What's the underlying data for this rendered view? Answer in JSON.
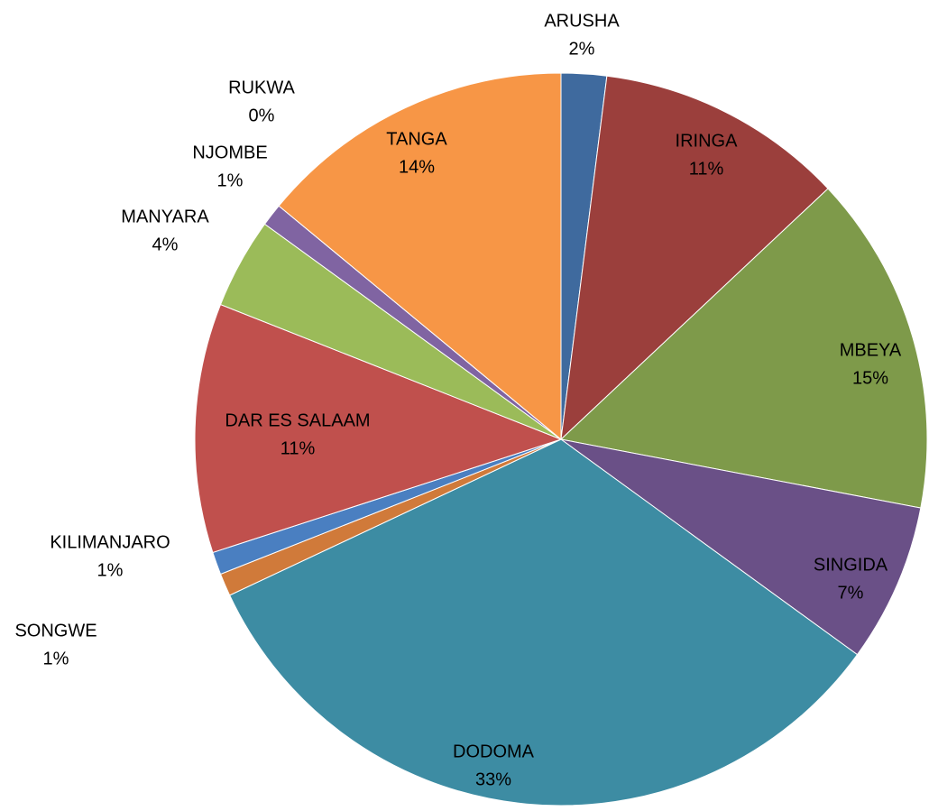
{
  "chart_data": {
    "type": "pie",
    "categories": [
      "ARUSHA",
      "IRINGA",
      "MBEYA",
      "SINGIDA",
      "DODOMA",
      "SONGWE",
      "KILIMANJARO",
      "DAR ES SALAAM",
      "MANYARA",
      "NJOMBE",
      "RUKWA",
      "TANGA"
    ],
    "values": [
      2,
      11,
      15,
      7,
      33,
      1,
      1,
      11,
      4,
      1,
      0,
      14
    ],
    "value_labels": [
      "2%",
      "11%",
      "15%",
      "7%",
      "33%",
      "1%",
      "1%",
      "11%",
      "4%",
      "1%",
      "0%",
      "14%"
    ],
    "colors": [
      "#3f6a9e",
      "#9b3f3c",
      "#7e9a4a",
      "#6a5087",
      "#3d8ca3",
      "#d07a3a",
      "#4a7fc1",
      "#c0504d",
      "#9bbb59",
      "#8064a2",
      "#4bacc6",
      "#f79646"
    ]
  }
}
